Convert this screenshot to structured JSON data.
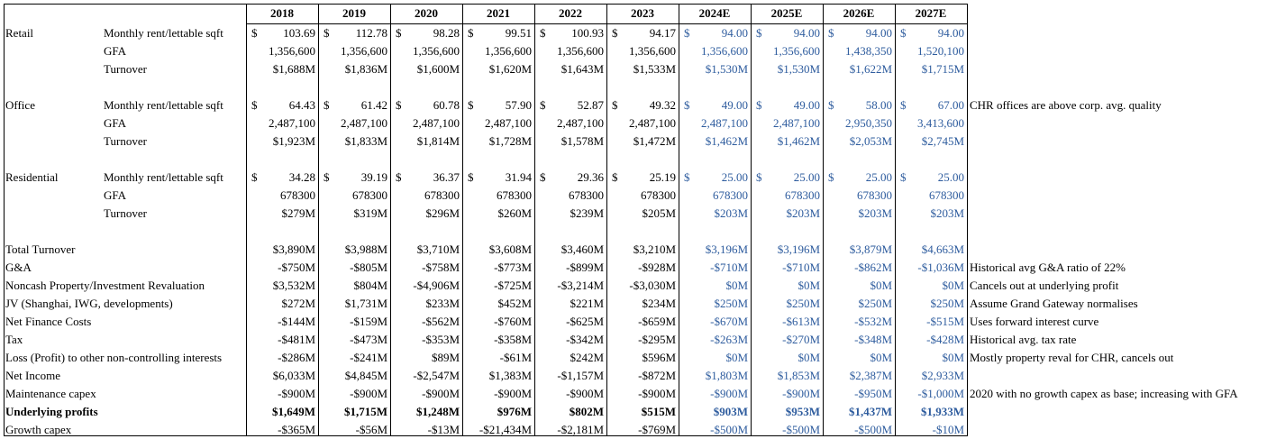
{
  "years": [
    "2018",
    "2019",
    "2020",
    "2021",
    "2022",
    "2023",
    "2024E",
    "2025E",
    "2026E",
    "2027E"
  ],
  "estimate_color": "#2e5c9e",
  "sections": [
    {
      "label": "Retail",
      "rows": [
        {
          "sub": "Monthly rent/lettable sqft",
          "currency": true,
          "values": [
            "103.69",
            "112.78",
            "98.28",
            "99.51",
            "100.93",
            "94.17",
            "94.00",
            "94.00",
            "94.00",
            "94.00"
          ]
        },
        {
          "sub": "GFA",
          "values": [
            "1,356,600",
            "1,356,600",
            "1,356,600",
            "1,356,600",
            "1,356,600",
            "1,356,600",
            "1,356,600",
            "1,356,600",
            "1,438,350",
            "1,520,100"
          ]
        },
        {
          "sub": "Turnover",
          "values": [
            "$1,688M",
            "$1,836M",
            "$1,600M",
            "$1,620M",
            "$1,643M",
            "$1,533M",
            "$1,530M",
            "$1,530M",
            "$1,622M",
            "$1,715M"
          ]
        }
      ],
      "note": ""
    },
    {
      "label": "Office",
      "rows": [
        {
          "sub": "Monthly rent/lettable sqft",
          "currency": true,
          "values": [
            "64.43",
            "61.42",
            "60.78",
            "57.90",
            "52.87",
            "49.32",
            "49.00",
            "49.00",
            "58.00",
            "67.00"
          ]
        },
        {
          "sub": "GFA",
          "values": [
            "2,487,100",
            "2,487,100",
            "2,487,100",
            "2,487,100",
            "2,487,100",
            "2,487,100",
            "2,487,100",
            "2,487,100",
            "2,950,350",
            "3,413,600"
          ]
        },
        {
          "sub": "Turnover",
          "values": [
            "$1,923M",
            "$1,833M",
            "$1,814M",
            "$1,728M",
            "$1,578M",
            "$1,472M",
            "$1,462M",
            "$1,462M",
            "$2,053M",
            "$2,745M"
          ]
        }
      ],
      "note": "CHR offices are above corp. avg. quality"
    },
    {
      "label": "Residential",
      "rows": [
        {
          "sub": "Monthly rent/lettable sqft",
          "currency": true,
          "values": [
            "34.28",
            "39.19",
            "36.37",
            "31.94",
            "29.36",
            "25.19",
            "25.00",
            "25.00",
            "25.00",
            "25.00"
          ]
        },
        {
          "sub": "GFA",
          "values": [
            "678300",
            "678300",
            "678300",
            "678300",
            "678300",
            "678300",
            "678300",
            "678300",
            "678300",
            "678300"
          ]
        },
        {
          "sub": "Turnover",
          "values": [
            "$279M",
            "$319M",
            "$296M",
            "$260M",
            "$239M",
            "$205M",
            "$203M",
            "$203M",
            "$203M",
            "$203M"
          ]
        }
      ],
      "note": ""
    }
  ],
  "currency_symbol": "$",
  "summary": [
    {
      "label": "Total Turnover",
      "values": [
        "$3,890M",
        "$3,988M",
        "$3,710M",
        "$3,608M",
        "$3,460M",
        "$3,210M",
        "$3,196M",
        "$3,196M",
        "$3,879M",
        "$4,663M"
      ],
      "note": ""
    },
    {
      "label": "G&A",
      "values": [
        "-$750M",
        "-$805M",
        "-$758M",
        "-$773M",
        "-$899M",
        "-$928M",
        "-$710M",
        "-$710M",
        "-$862M",
        "-$1,036M"
      ],
      "note": "Historical avg G&A ratio of 22%"
    },
    {
      "label": "Noncash Property/Investment Revaluation",
      "values": [
        "$3,532M",
        "$804M",
        "-$4,906M",
        "-$725M",
        "-$3,214M",
        "-$3,030M",
        "$0M",
        "$0M",
        "$0M",
        "$0M"
      ],
      "note": "Cancels out at underlying profit"
    },
    {
      "label": "JV (Shanghai, IWG, developments)",
      "values": [
        "$272M",
        "$1,731M",
        "$233M",
        "$452M",
        "$221M",
        "$234M",
        "$250M",
        "$250M",
        "$250M",
        "$250M"
      ],
      "note": "Assume Grand Gateway normalises"
    },
    {
      "label": "Net Finance Costs",
      "values": [
        "-$144M",
        "-$159M",
        "-$562M",
        "-$760M",
        "-$625M",
        "-$659M",
        "-$670M",
        "-$613M",
        "-$532M",
        "-$515M"
      ],
      "note": "Uses  forward interest curve"
    },
    {
      "label": "Tax",
      "values": [
        "-$481M",
        "-$473M",
        "-$353M",
        "-$358M",
        "-$342M",
        "-$295M",
        "-$263M",
        "-$270M",
        "-$348M",
        "-$428M"
      ],
      "note": "Historical avg. tax rate"
    },
    {
      "label": "Loss (Profit) to other non-controlling interests",
      "values": [
        "-$286M",
        "-$241M",
        "$89M",
        "-$61M",
        "$242M",
        "$596M",
        "$0M",
        "$0M",
        "$0M",
        "$0M"
      ],
      "note": "Mostly property reval for CHR, cancels out"
    },
    {
      "label": "Net Income",
      "values": [
        "$6,033M",
        "$4,845M",
        "-$2,547M",
        "$1,383M",
        "-$1,157M",
        "-$872M",
        "$1,803M",
        "$1,853M",
        "$2,387M",
        "$2,933M"
      ],
      "note": ""
    },
    {
      "label": "Maintenance capex",
      "values": [
        "-$900M",
        "-$900M",
        "-$900M",
        "-$900M",
        "-$900M",
        "-$900M",
        "-$900M",
        "-$900M",
        "-$950M",
        "-$1,000M"
      ],
      "note": "2020 with no growth capex as base; increasing with GFA"
    },
    {
      "label": "Underlying profits",
      "bold": true,
      "values": [
        "$1,649M",
        "$1,715M",
        "$1,248M",
        "$976M",
        "$802M",
        "$515M",
        "$903M",
        "$953M",
        "$1,437M",
        "$1,933M"
      ],
      "note": ""
    },
    {
      "label": "Growth capex",
      "values": [
        "-$365M",
        "-$56M",
        "-$13M",
        "-$21,434M",
        "-$2,181M",
        "-$769M",
        "-$500M",
        "-$500M",
        "-$500M",
        "-$10M"
      ],
      "note": ""
    }
  ]
}
